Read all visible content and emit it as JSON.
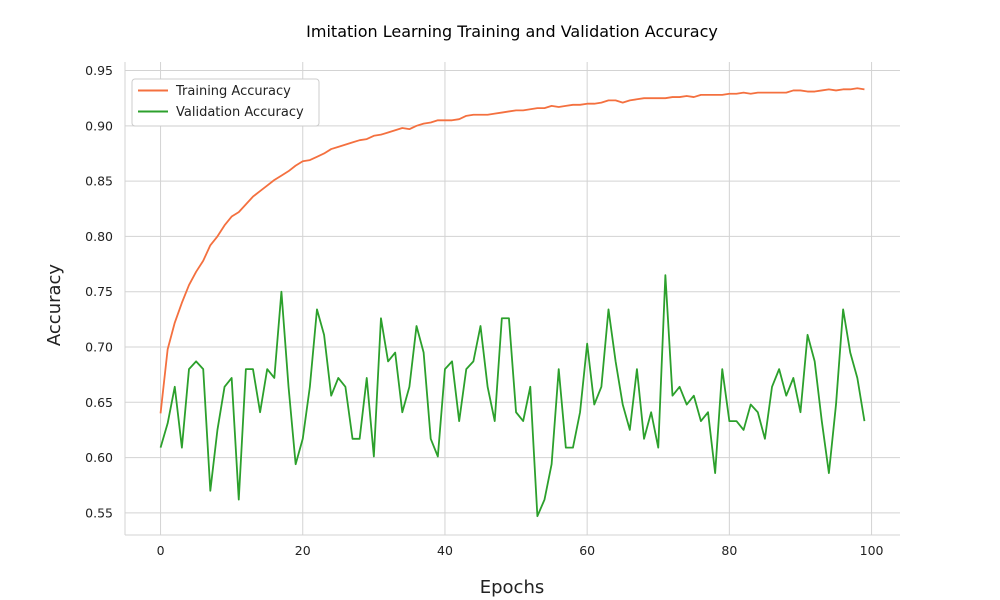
{
  "chart_data": {
    "type": "line",
    "title": "Imitation Learning Training and Validation Accuracy",
    "xlabel": "Epochs",
    "ylabel": "Accuracy",
    "xlim": [
      -5,
      104
    ],
    "ylim": [
      0.53,
      0.955
    ],
    "x_ticks": [
      0,
      20,
      40,
      60,
      80,
      100
    ],
    "y_ticks": [
      0.55,
      0.6,
      0.65,
      0.7,
      0.75,
      0.8,
      0.85,
      0.9,
      0.95
    ],
    "x_tick_labels": [
      "0",
      "20",
      "40",
      "60",
      "80",
      "100"
    ],
    "y_tick_labels": [
      "0.55",
      "0.60",
      "0.65",
      "0.70",
      "0.75",
      "0.80",
      "0.85",
      "0.90",
      "0.95"
    ],
    "grid": true,
    "legend_position": "top-left",
    "x": [
      0,
      1,
      2,
      3,
      4,
      5,
      6,
      7,
      8,
      9,
      10,
      11,
      12,
      13,
      14,
      15,
      16,
      17,
      18,
      19,
      20,
      21,
      22,
      23,
      24,
      25,
      26,
      27,
      28,
      29,
      30,
      31,
      32,
      33,
      34,
      35,
      36,
      37,
      38,
      39,
      40,
      41,
      42,
      43,
      44,
      45,
      46,
      47,
      48,
      49,
      50,
      51,
      52,
      53,
      54,
      55,
      56,
      57,
      58,
      59,
      60,
      61,
      62,
      63,
      64,
      65,
      66,
      67,
      68,
      69,
      70,
      71,
      72,
      73,
      74,
      75,
      76,
      77,
      78,
      79,
      80,
      81,
      82,
      83,
      84,
      85,
      86,
      87,
      88,
      89,
      90,
      91,
      92,
      93,
      94,
      95,
      96,
      97,
      98,
      99
    ],
    "series": [
      {
        "name": "Training Accuracy",
        "color": "#f4703f",
        "values": [
          0.64,
          0.698,
          0.722,
          0.74,
          0.756,
          0.768,
          0.778,
          0.792,
          0.8,
          0.81,
          0.818,
          0.822,
          0.829,
          0.836,
          0.841,
          0.846,
          0.851,
          0.855,
          0.859,
          0.864,
          0.868,
          0.869,
          0.872,
          0.875,
          0.879,
          0.881,
          0.883,
          0.885,
          0.887,
          0.888,
          0.891,
          0.892,
          0.894,
          0.896,
          0.898,
          0.897,
          0.9,
          0.902,
          0.903,
          0.905,
          0.905,
          0.905,
          0.906,
          0.909,
          0.91,
          0.91,
          0.91,
          0.911,
          0.912,
          0.913,
          0.914,
          0.914,
          0.915,
          0.916,
          0.916,
          0.918,
          0.917,
          0.918,
          0.919,
          0.919,
          0.92,
          0.92,
          0.921,
          0.923,
          0.923,
          0.921,
          0.923,
          0.924,
          0.925,
          0.925,
          0.925,
          0.925,
          0.926,
          0.926,
          0.927,
          0.926,
          0.928,
          0.928,
          0.928,
          0.928,
          0.929,
          0.929,
          0.93,
          0.929,
          0.93,
          0.93,
          0.93,
          0.93,
          0.93,
          0.932,
          0.932,
          0.931,
          0.931,
          0.932,
          0.933,
          0.932,
          0.933,
          0.933,
          0.934,
          0.933
        ]
      },
      {
        "name": "Validation Accuracy",
        "color": "#2ca02c",
        "values": [
          0.609,
          0.631,
          0.664,
          0.609,
          0.68,
          0.687,
          0.68,
          0.57,
          0.625,
          0.664,
          0.672,
          0.562,
          0.68,
          0.68,
          0.641,
          0.68,
          0.672,
          0.75,
          0.664,
          0.594,
          0.617,
          0.664,
          0.734,
          0.711,
          0.656,
          0.672,
          0.664,
          0.617,
          0.617,
          0.672,
          0.601,
          0.726,
          0.687,
          0.695,
          0.641,
          0.664,
          0.719,
          0.695,
          0.617,
          0.601,
          0.68,
          0.687,
          0.633,
          0.68,
          0.687,
          0.719,
          0.664,
          0.633,
          0.726,
          0.726,
          0.641,
          0.633,
          0.664,
          0.547,
          0.562,
          0.594,
          0.68,
          0.609,
          0.609,
          0.641,
          0.703,
          0.648,
          0.664,
          0.734,
          0.687,
          0.648,
          0.625,
          0.68,
          0.617,
          0.641,
          0.609,
          0.765,
          0.656,
          0.664,
          0.648,
          0.656,
          0.633,
          0.641,
          0.586,
          0.68,
          0.633,
          0.633,
          0.625,
          0.648,
          0.641,
          0.617,
          0.664,
          0.68,
          0.656,
          0.672,
          0.641,
          0.711,
          0.687,
          0.633,
          0.586,
          0.648,
          0.734,
          0.695,
          0.672,
          0.633
        ]
      }
    ]
  }
}
